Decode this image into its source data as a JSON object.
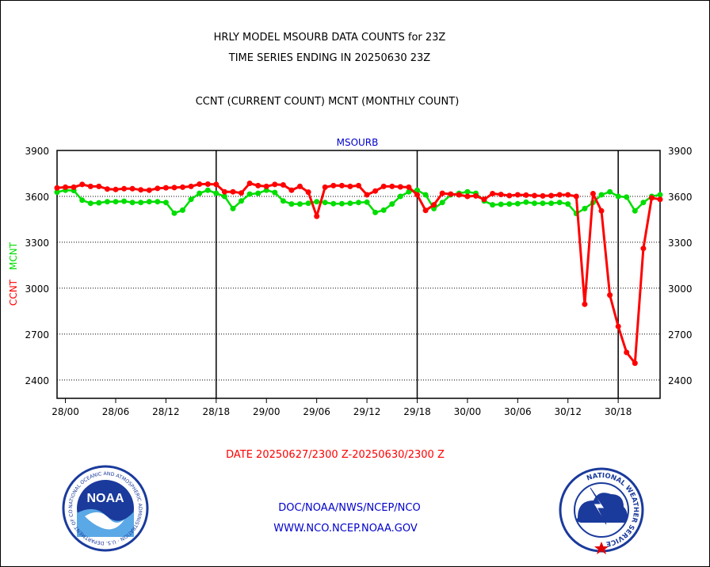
{
  "header": {
    "line1": "HRLY MODEL MSOURB DATA COUNTS for 23Z",
    "line2": "TIME SERIES ENDING IN 20250630 23Z",
    "line3": "CCNT (CURRENT COUNT) MCNT (MONTHLY COUNT)"
  },
  "footer": {
    "date_range": "DATE 20250627/2300 Z-20250630/2300 Z",
    "org_path": "DOC/NOAA/NWS/NCEP/NCO",
    "website": "WWW.NCO.NCEP.NOAA.GOV"
  },
  "logos": {
    "noaa_text": "NOAA",
    "noaa_ring": "NATIONAL OCEANIC AND ATMOSPHERIC ADMINISTRATION · U.S. DEPARTMENT OF COMMERCE",
    "nws_ring": "NATIONAL WEATHER SERVICE"
  },
  "colors": {
    "ccnt": "#ff0000",
    "mcnt": "#00dd00",
    "title_blue": "#0000cc",
    "frame": "#000000"
  },
  "chart_data": {
    "type": "line",
    "title": "MSOURB",
    "ylabel_ccnt": "CCNT",
    "ylabel_mcnt": "MCNT",
    "ylim": [
      2280,
      3900
    ],
    "yticks": [
      2400,
      2700,
      3000,
      3300,
      3600,
      3900
    ],
    "x_tick_labels": [
      "28/00",
      "28/06",
      "28/12",
      "28/18",
      "29/00",
      "29/06",
      "29/12",
      "29/18",
      "30/00",
      "30/06",
      "30/12",
      "30/18"
    ],
    "x_tick_hours": [
      1,
      7,
      13,
      19,
      25,
      31,
      37,
      43,
      49,
      55,
      61,
      67
    ],
    "x_range_hours": [
      0,
      72
    ],
    "x_unit": "hours from 27/23Z",
    "day_boundary_hours": [
      19,
      43,
      67
    ],
    "series": [
      {
        "name": "CCNT",
        "color": "#ff0000",
        "x": [
          0,
          1,
          2,
          3,
          4,
          5,
          6,
          7,
          8,
          9,
          10,
          11,
          12,
          13,
          14,
          15,
          16,
          17,
          18,
          19,
          20,
          21,
          22,
          23,
          24,
          25,
          26,
          27,
          28,
          29,
          30,
          31,
          32,
          33,
          34,
          35,
          36,
          37,
          38,
          39,
          40,
          41,
          42,
          43,
          44,
          45,
          46,
          47,
          48,
          49,
          50,
          51,
          52,
          53,
          54,
          55,
          56,
          57,
          58,
          59,
          60,
          61,
          62,
          63,
          64,
          65,
          66,
          67,
          68,
          69,
          70,
          71,
          72
        ],
        "values": [
          3655,
          3660,
          3660,
          3678,
          3665,
          3665,
          3648,
          3645,
          3650,
          3650,
          3643,
          3640,
          3652,
          3656,
          3657,
          3660,
          3665,
          3680,
          3680,
          3678,
          3630,
          3630,
          3622,
          3685,
          3670,
          3665,
          3678,
          3675,
          3640,
          3665,
          3628,
          3470,
          3660,
          3670,
          3670,
          3665,
          3670,
          3610,
          3635,
          3665,
          3665,
          3662,
          3660,
          3610,
          3508,
          3545,
          3620,
          3615,
          3610,
          3600,
          3603,
          3580,
          3618,
          3612,
          3605,
          3610,
          3608,
          3605,
          3603,
          3605,
          3610,
          3610,
          3600,
          2895,
          3618,
          3505,
          2955,
          2750,
          2580,
          2510,
          3260,
          3590,
          3580
        ]
      },
      {
        "name": "MCNT",
        "color": "#00dd00",
        "x": [
          0,
          1,
          2,
          3,
          4,
          5,
          6,
          7,
          8,
          9,
          10,
          11,
          12,
          13,
          14,
          15,
          16,
          17,
          18,
          19,
          20,
          21,
          22,
          23,
          24,
          25,
          26,
          27,
          28,
          29,
          30,
          31,
          32,
          33,
          34,
          35,
          36,
          37,
          38,
          39,
          40,
          41,
          42,
          43,
          44,
          45,
          46,
          47,
          48,
          49,
          50,
          51,
          52,
          53,
          54,
          55,
          56,
          57,
          58,
          59,
          60,
          61,
          62,
          63,
          64,
          65,
          66,
          67,
          68,
          69,
          70,
          71,
          72
        ],
        "values": [
          3628,
          3640,
          3638,
          3575,
          3555,
          3558,
          3565,
          3565,
          3568,
          3560,
          3560,
          3565,
          3565,
          3560,
          3490,
          3510,
          3580,
          3620,
          3640,
          3620,
          3600,
          3520,
          3570,
          3615,
          3620,
          3640,
          3625,
          3570,
          3550,
          3550,
          3555,
          3565,
          3560,
          3552,
          3552,
          3555,
          3560,
          3562,
          3495,
          3510,
          3550,
          3600,
          3630,
          3640,
          3610,
          3520,
          3560,
          3610,
          3620,
          3630,
          3620,
          3570,
          3545,
          3548,
          3550,
          3552,
          3562,
          3555,
          3555,
          3555,
          3560,
          3550,
          3488,
          3520,
          3560,
          3610,
          3630,
          3600,
          3595,
          3505,
          3560,
          3600,
          3610
        ]
      }
    ]
  }
}
